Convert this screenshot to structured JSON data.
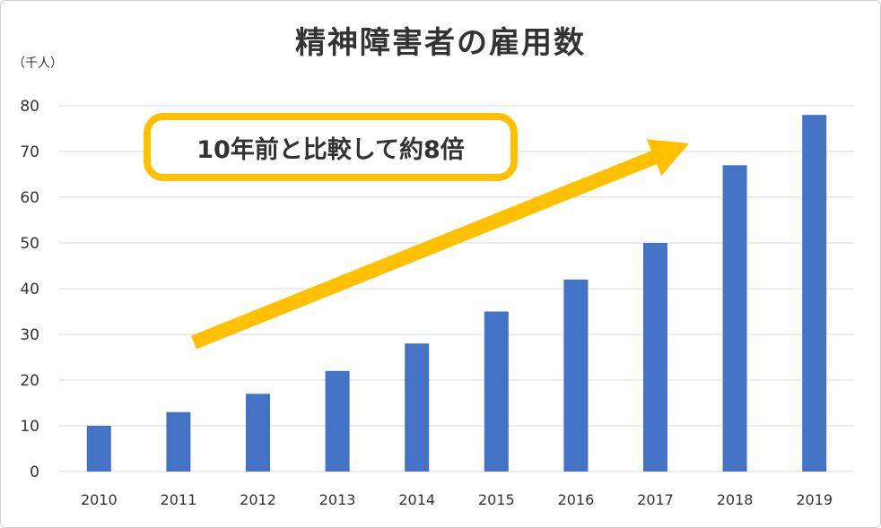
{
  "chart_data": {
    "type": "bar",
    "title": "精神障害者の雇用数",
    "unit_label": "（千人）",
    "annotation": "10年前と比較して約8倍",
    "categories": [
      "2010",
      "2011",
      "2012",
      "2013",
      "2014",
      "2015",
      "2016",
      "2017",
      "2018",
      "2019"
    ],
    "values": [
      10,
      13,
      17,
      22,
      28,
      35,
      42,
      50,
      67,
      78
    ],
    "ylim": [
      0,
      80
    ],
    "yticks": [
      "0",
      "10",
      "20",
      "30",
      "40",
      "50",
      "60",
      "70",
      "80"
    ],
    "grid": true,
    "legend": "none",
    "colors": {
      "bar": "#4472C4",
      "arrow": "#FFC000",
      "grid": "#D9D9D9"
    }
  }
}
